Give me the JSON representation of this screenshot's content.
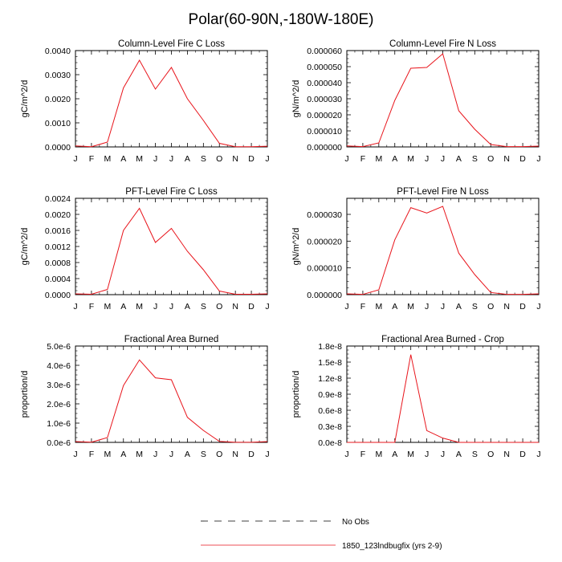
{
  "title": "Polar(60-90N,-180W-180E)",
  "colors": {
    "series": "#e8141b",
    "axis": "#000000"
  },
  "legend": {
    "items": [
      {
        "label": "No Obs",
        "style": "dashed",
        "color": "#000000"
      },
      {
        "label": "1850_123lndbugfix (yrs 2-9)",
        "style": "solid",
        "color": "#e8141b"
      }
    ]
  },
  "chart_data": [
    {
      "type": "line",
      "title": "Column-Level Fire C Loss",
      "ylabel": "gC/m^2/d",
      "categories": [
        "J",
        "F",
        "M",
        "A",
        "M",
        "J",
        "J",
        "A",
        "S",
        "O",
        "N",
        "D",
        "J"
      ],
      "ylim": [
        0,
        0.004
      ],
      "yticks": [
        "0.0000",
        "0.0010",
        "0.0020",
        "0.0030",
        "0.0040"
      ],
      "series": [
        {
          "name": "1850_123lndbugfix (yrs 2-9)",
          "values": [
            4e-05,
            1e-05,
            0.0002,
            0.00245,
            0.0036,
            0.0024,
            0.0033,
            0.002,
            0.0011,
            0.00015,
            1e-05,
            1e-05,
            3e-05
          ]
        }
      ]
    },
    {
      "type": "line",
      "title": "Column-Level Fire N Loss",
      "ylabel": "gN/m^2/d",
      "categories": [
        "J",
        "F",
        "M",
        "A",
        "M",
        "J",
        "J",
        "A",
        "S",
        "O",
        "N",
        "D",
        "J"
      ],
      "ylim": [
        0,
        6e-05
      ],
      "yticks": [
        "0.000000",
        "0.000010",
        "0.000020",
        "0.000030",
        "0.000040",
        "0.000050",
        "0.000060"
      ],
      "series": [
        {
          "name": "1850_123lndbugfix (yrs 2-9)",
          "values": [
            6e-07,
            2e-07,
            2.5e-06,
            2.9e-05,
            4.9e-05,
            4.95e-05,
            5.8e-05,
            2.25e-05,
            1.1e-05,
            1.5e-06,
            2e-07,
            2e-07,
            5e-07
          ]
        }
      ]
    },
    {
      "type": "line",
      "title": "PFT-Level Fire C Loss",
      "ylabel": "gC/m^2/d",
      "categories": [
        "J",
        "F",
        "M",
        "A",
        "M",
        "J",
        "J",
        "A",
        "S",
        "O",
        "N",
        "D",
        "J"
      ],
      "ylim": [
        0,
        0.0024
      ],
      "yticks": [
        "0.0000",
        "0.0004",
        "0.0008",
        "0.0012",
        "0.0016",
        "0.0020",
        "0.0024"
      ],
      "series": [
        {
          "name": "1850_123lndbugfix (yrs 2-9)",
          "values": [
            2e-05,
            1e-05,
            0.00013,
            0.0016,
            0.00215,
            0.0013,
            0.00165,
            0.00108,
            0.00062,
            9e-05,
            1e-05,
            1e-05,
            2e-05
          ]
        }
      ]
    },
    {
      "type": "line",
      "title": "PFT-Level Fire N Loss",
      "ylabel": "gN/m^2/d",
      "categories": [
        "J",
        "F",
        "M",
        "A",
        "M",
        "J",
        "J",
        "A",
        "S",
        "O",
        "N",
        "D",
        "J"
      ],
      "ylim": [
        0,
        3.6e-05
      ],
      "yticks": [
        "0.000000",
        "0.000010",
        "0.000020",
        "0.000030"
      ],
      "series": [
        {
          "name": "1850_123lndbugfix (yrs 2-9)",
          "values": [
            3e-07,
            1e-07,
            1.8e-06,
            2.05e-05,
            3.25e-05,
            3.05e-05,
            3.3e-05,
            1.55e-05,
            7.5e-06,
            8e-07,
            1e-07,
            1e-07,
            3e-07
          ]
        }
      ]
    },
    {
      "type": "line",
      "title": "Fractional Area Burned",
      "ylabel": "proportion/d",
      "categories": [
        "J",
        "F",
        "M",
        "A",
        "M",
        "J",
        "J",
        "A",
        "S",
        "O",
        "N",
        "D",
        "J"
      ],
      "ylim": [
        0,
        5e-06
      ],
      "yticks": [
        "0.0e-6",
        "1.0e-6",
        "2.0e-6",
        "3.0e-6",
        "4.0e-6",
        "5.0e-6"
      ],
      "series": [
        {
          "name": "1850_123lndbugfix (yrs 2-9)",
          "values": [
            4e-08,
            1e-08,
            2.5e-07,
            2.95e-06,
            4.28e-06,
            3.35e-06,
            3.25e-06,
            1.3e-06,
            6.2e-07,
            5e-08,
            5e-09,
            5e-09,
            4e-08
          ]
        }
      ]
    },
    {
      "type": "line",
      "title": "Fractional Area Burned - Crop",
      "ylabel": "proportion/d",
      "categories": [
        "J",
        "F",
        "M",
        "A",
        "M",
        "J",
        "J",
        "A",
        "S",
        "O",
        "N",
        "D",
        "J"
      ],
      "ylim": [
        0,
        1.8e-08
      ],
      "yticks": [
        "0.0e-8",
        "0.3e-8",
        "0.6e-8",
        "0.9e-8",
        "1.2e-8",
        "1.5e-8",
        "1.8e-8"
      ],
      "series": [
        {
          "name": "1850_123lndbugfix (yrs 2-9)",
          "values": [
            0,
            0,
            0,
            0,
            1.64e-08,
            2.2e-09,
            8e-10,
            0,
            0,
            0,
            0,
            0,
            0
          ]
        }
      ]
    }
  ]
}
